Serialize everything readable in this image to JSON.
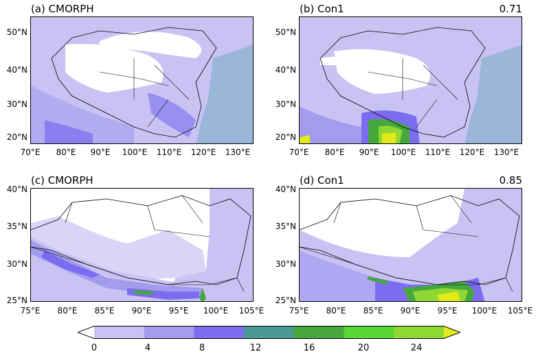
{
  "panels": [
    {
      "title": "(a) CMORPH",
      "corr": "",
      "xticks": [
        "70°E",
        "80°E",
        "90°E",
        "100°E",
        "110°E",
        "120°E",
        "130°E"
      ],
      "yticks": [
        "50°N",
        "40°N",
        "30°N",
        "20°N"
      ]
    },
    {
      "title": "(b) Con1",
      "corr": "0.71",
      "xticks": [
        "70°E",
        "80°E",
        "90°E",
        "100°E",
        "110°E",
        "120°E",
        "130°E"
      ],
      "yticks": [
        "50°N",
        "40°N",
        "30°N",
        "20°N"
      ]
    },
    {
      "title": "(c) CMORPH",
      "corr": "",
      "xticks": [
        "75°E",
        "80°E",
        "85°E",
        "90°E",
        "95°E",
        "100°E",
        "105°E"
      ],
      "yticks": [
        "40°N",
        "35°N",
        "30°N",
        "25°N"
      ]
    },
    {
      "title": "(d) Con1",
      "corr": "0.85",
      "xticks": [
        "75°E",
        "80°E",
        "85°E",
        "90°E",
        "95°E",
        "100°E",
        "105°E"
      ],
      "yticks": [
        "40°N",
        "35°N",
        "30°N",
        "25°N"
      ]
    }
  ],
  "colorbar": {
    "levels": [
      "0",
      "4",
      "8",
      "12",
      "16",
      "20",
      "24"
    ],
    "colors": [
      "#ffffff",
      "#c9c3f3",
      "#a49bef",
      "#7b6cf0",
      "#4a9a94",
      "#46a83c",
      "#58d834",
      "#8fd834",
      "#e2ea18"
    ]
  },
  "ocean_color": "#9ab6d9"
}
